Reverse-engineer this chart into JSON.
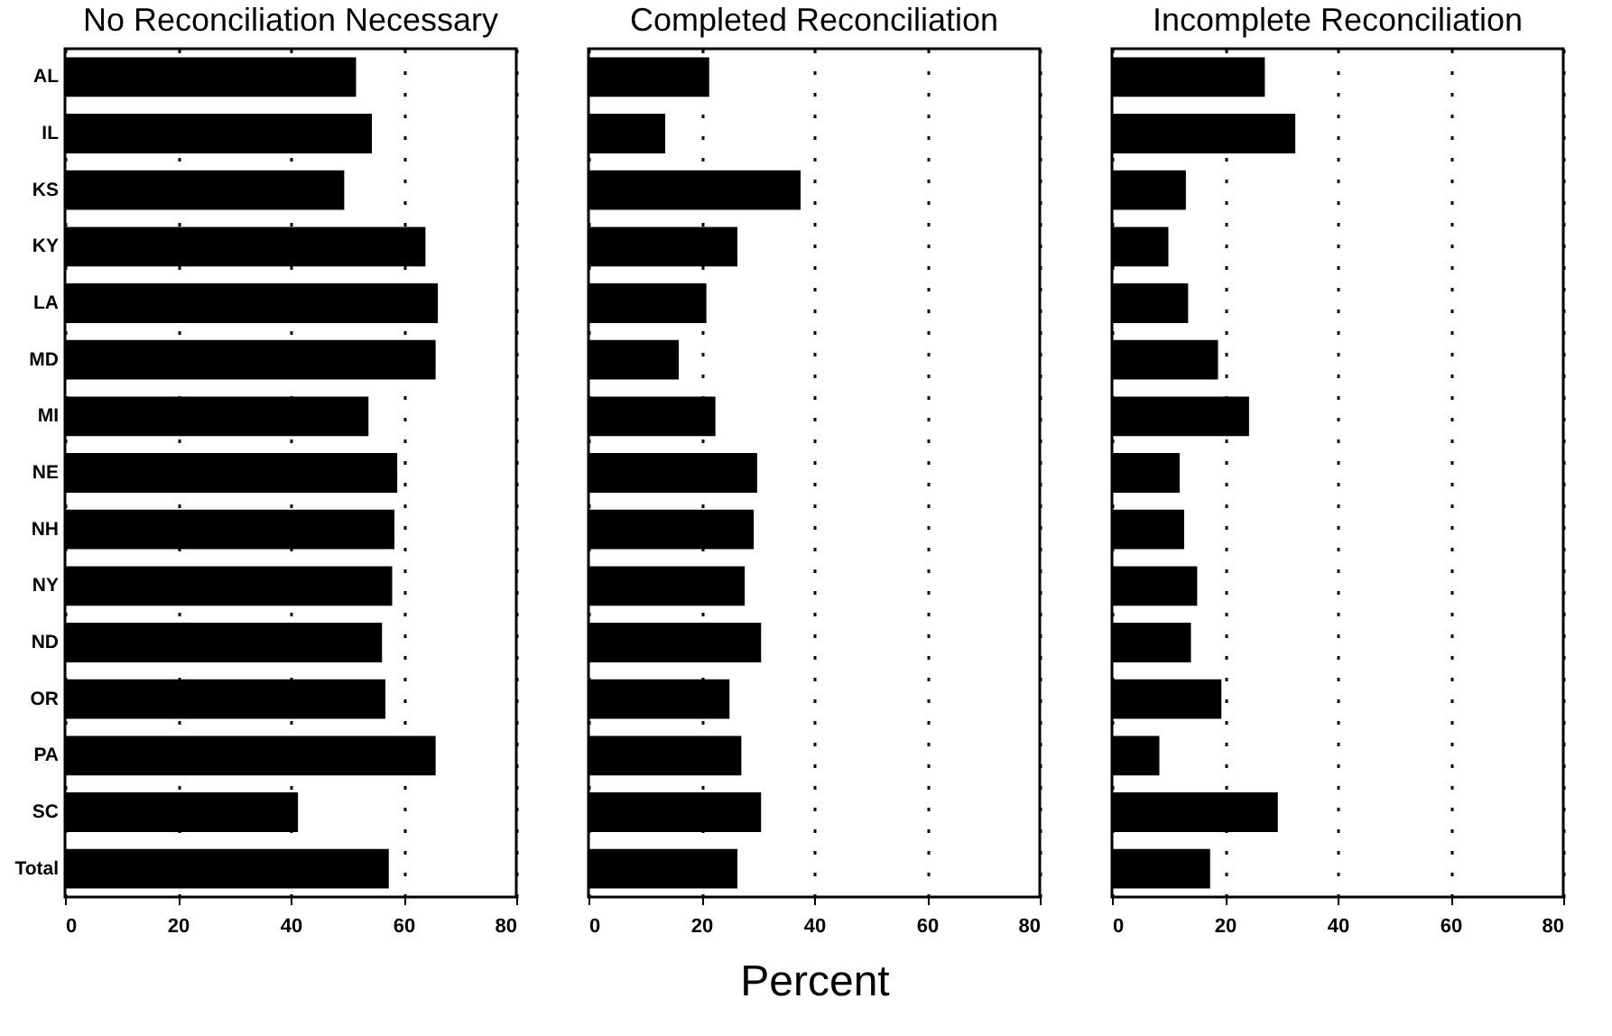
{
  "chart_data": [
    {
      "type": "bar",
      "orientation": "horizontal",
      "title": "No Reconciliation Necessary",
      "categories": [
        "AL",
        "IL",
        "KS",
        "KY",
        "LA",
        "MD",
        "MI",
        "NE",
        "NH",
        "NY",
        "ND",
        "OR",
        "PA",
        "SC",
        "Total"
      ],
      "values": [
        51.6,
        54.4,
        49.5,
        63.9,
        66.1,
        65.7,
        53.8,
        58.9,
        58.4,
        58.0,
        56.2,
        56.8,
        65.7,
        41.3,
        57.4
      ],
      "color": "#000000",
      "xlim": [
        0,
        80
      ],
      "xticks": [
        0,
        20,
        40,
        60,
        80
      ],
      "grid": "x"
    },
    {
      "type": "bar",
      "orientation": "horizontal",
      "title": "Completed Reconciliation",
      "xlabel": "Percent",
      "categories": [
        null,
        null,
        null,
        null,
        null,
        null,
        null,
        null,
        null,
        null,
        null,
        null,
        null,
        null,
        null
      ],
      "values": [
        21.4,
        13.6,
        37.6,
        26.4,
        20.9,
        16.0,
        22.5,
        29.9,
        29.3,
        27.7,
        30.6,
        25.0,
        27.1,
        30.6,
        26.4
      ],
      "color": "#000000",
      "xlim": [
        0,
        80
      ],
      "xticks": [
        0,
        20,
        40,
        60,
        80
      ],
      "grid": "x",
      "tick_labels": "x"
    },
    {
      "type": "bar",
      "orientation": "horizontal",
      "title": "Incomplete Reconciliation",
      "categories": [
        null,
        null,
        null,
        null,
        null,
        null,
        null,
        null,
        null,
        null,
        null,
        null,
        null,
        null,
        null
      ],
      "values": [
        27.1,
        32.5,
        13.1,
        10.0,
        13.5,
        18.8,
        24.3,
        12.0,
        12.8,
        15.1,
        14.0,
        19.4,
        8.4,
        29.4,
        17.4
      ],
      "color": "#000000",
      "xlim": [
        0,
        80
      ],
      "xticks": [
        0,
        20,
        40,
        60,
        80
      ],
      "grid": "x",
      "tick_labels": "x"
    }
  ]
}
